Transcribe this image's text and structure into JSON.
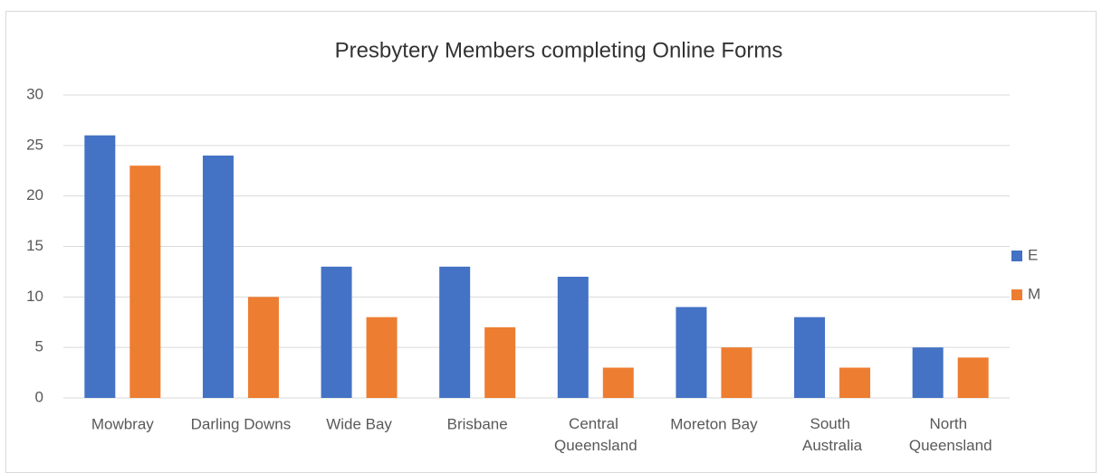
{
  "chart_data": {
    "type": "bar",
    "title": "Presbytery Members completing Online Forms",
    "categories": [
      "Mowbray",
      "Darling Downs",
      "Wide Bay",
      "Brisbane",
      "Central Queensland",
      "Moreton Bay",
      "South Australia",
      "North Queensland"
    ],
    "series": [
      {
        "name": "E",
        "color": "#4472c4",
        "values": [
          26,
          24,
          13,
          13,
          12,
          9,
          8,
          5
        ]
      },
      {
        "name": "M",
        "color": "#ed7d31",
        "values": [
          23,
          10,
          8,
          7,
          3,
          5,
          3,
          4
        ]
      }
    ],
    "ylim": [
      0,
      30
    ],
    "yticks": [
      0,
      5,
      10,
      15,
      20,
      25,
      30
    ],
    "grid": true,
    "legend": "right"
  }
}
